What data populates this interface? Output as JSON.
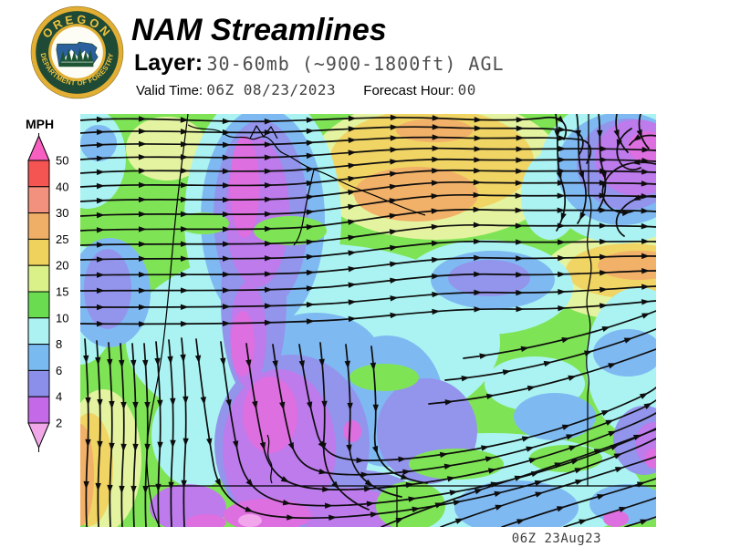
{
  "header": {
    "title": "NAM Streamlines",
    "layer_label": "Layer:",
    "layer_value": "30-60mb (~900-1800ft) AGL",
    "valid_time_label": "Valid Time:",
    "valid_time_value": "06Z 08/23/2023",
    "forecast_hour_label": "Forecast Hour:",
    "forecast_hour_value": "00"
  },
  "logo": {
    "top_text": "OREGON",
    "bottom_text": "DEPARTMENT OF FORESTRY",
    "ring_color": "#E2AF34",
    "field_color": "#1F4A35",
    "state_color": "#2B5F9E",
    "tree_color": "#1C5434"
  },
  "legend": {
    "unit": "MPH",
    "tick_labels": [
      "50",
      "40",
      "30",
      "25",
      "20",
      "15",
      "10",
      "8",
      "6",
      "4",
      "2"
    ],
    "segment_colors_top_to_bottom": [
      "#F75FC0",
      "#F45552",
      "#F2917E",
      "#F0AF67",
      "#EFD25D",
      "#DAF18A",
      "#69DC50",
      "#ADF2F2",
      "#79BAF0",
      "#8C8FE9",
      "#C46AE8",
      "#F0A8E8"
    ]
  },
  "map": {
    "timestamp": "06Z 23Aug23",
    "streamline_color": "#0D0D0D",
    "boundary_color": "#000000"
  }
}
